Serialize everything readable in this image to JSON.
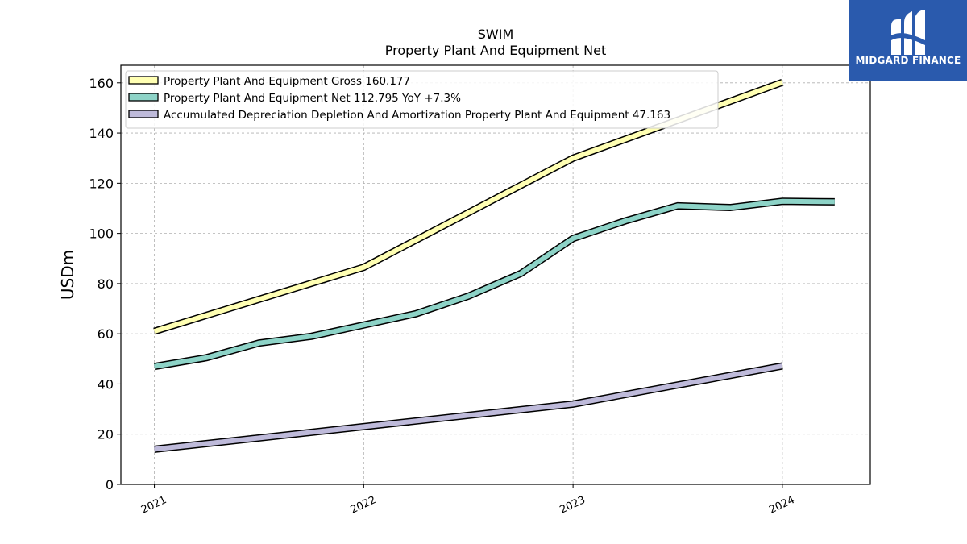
{
  "chart_data": {
    "type": "line",
    "title": "SWIM",
    "subtitle": "Property Plant And Equipment Net",
    "ylabel": "USDm",
    "xlabel": "",
    "xlim": [
      2020.84,
      2024.42
    ],
    "ylim": [
      0,
      167
    ],
    "yticks": [
      0,
      20,
      40,
      60,
      80,
      100,
      120,
      140,
      160
    ],
    "xticks": [
      {
        "value": 2021,
        "label": "2021"
      },
      {
        "value": 2022,
        "label": "2022"
      },
      {
        "value": 2023,
        "label": "2023"
      },
      {
        "value": 2024,
        "label": "2024"
      }
    ],
    "grid": true,
    "legend_position": "top-left",
    "series": [
      {
        "name": "Property Plant And Equipment Gross",
        "legend_label": "Property Plant And Equipment Gross  160.177",
        "color": "#ffffb3",
        "x": [
          2021.0,
          2022.0,
          2023.0,
          2024.0
        ],
        "y": [
          61.0,
          86.5,
          130.0,
          160.2
        ]
      },
      {
        "name": "Property Plant And Equipment Net",
        "legend_label": "Property Plant And Equipment Net  112.795 YoY +7.3%",
        "color": "#8dd3c7",
        "x": [
          2021.0,
          2021.25,
          2021.5,
          2021.75,
          2022.0,
          2022.25,
          2022.5,
          2022.75,
          2023.0,
          2023.25,
          2023.5,
          2023.75,
          2024.0,
          2024.25
        ],
        "y": [
          47.0,
          50.5,
          56.3,
          59.0,
          63.5,
          68.0,
          75.0,
          84.0,
          98.0,
          105.0,
          111.0,
          110.3,
          112.8,
          112.6
        ]
      },
      {
        "name": "Accumulated Depreciation Depletion And Amortization Property Plant And Equipment",
        "legend_label": "Accumulated Depreciation Depletion And Amortization Property Plant And Equipment  47.163",
        "color": "#bebada",
        "x": [
          2021.0,
          2022.0,
          2023.0,
          2024.0
        ],
        "y": [
          14.0,
          23.0,
          32.0,
          47.2
        ]
      }
    ]
  },
  "logo": {
    "text": "MIDGARD FINANCE",
    "background": "#2a5aad",
    "icon": "midgard-logo-icon"
  }
}
